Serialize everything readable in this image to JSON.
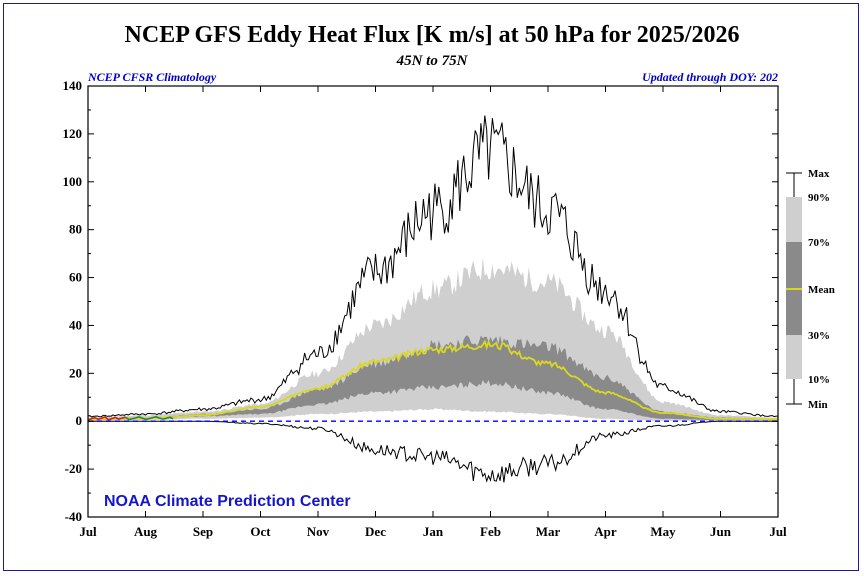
{
  "header": {
    "title": "NCEP GFS Eddy Heat Flux [K m/s] at 50 hPa for 2025/2026",
    "subtitle": "45N to 75N",
    "left_note": "NCEP CFSR Climatology",
    "right_note": "Updated through DOY: 202"
  },
  "watermark": "NOAA Climate Prediction Center",
  "chart_data": {
    "type": "area",
    "x": [
      "Jul",
      "Aug",
      "Sep",
      "Oct",
      "Nov",
      "Dec",
      "Jan",
      "Feb",
      "Mar",
      "Apr",
      "May",
      "Jun",
      "Jul"
    ],
    "xlabel": "",
    "ylabel": "",
    "ylim": [
      -40,
      140
    ],
    "yticks": [
      -40,
      -20,
      0,
      20,
      40,
      60,
      80,
      100,
      120,
      140
    ],
    "reference_line": {
      "y": 0,
      "style": "dashed",
      "color": "#0000ff"
    },
    "colors": {
      "band_10_90": "#cfcfcf",
      "band_30_70": "#8a8a8a",
      "mean": "#d8d820",
      "extremes": "#000000",
      "current": "#2b8a2b"
    },
    "series": [
      {
        "name": "Max",
        "values": [
          2,
          3,
          5,
          9,
          28,
          62,
          88,
          112,
          88,
          55,
          14,
          4,
          2
        ]
      },
      {
        "name": "90%",
        "values": [
          1.5,
          2.5,
          4,
          7,
          20,
          40,
          55,
          64,
          58,
          38,
          8,
          2.5,
          1.5
        ]
      },
      {
        "name": "70%",
        "values": [
          1,
          1.5,
          3,
          5,
          13,
          24,
          32,
          34,
          31,
          18,
          4,
          1.5,
          1
        ]
      },
      {
        "name": "Mean",
        "values": [
          0.8,
          1.2,
          2.5,
          6,
          14,
          25,
          30,
          32,
          24,
          12,
          3.5,
          1,
          0.8
        ]
      },
      {
        "name": "30%",
        "values": [
          0.5,
          1,
          2,
          3,
          7,
          12,
          14,
          16,
          12,
          5,
          1,
          0.5,
          0.5
        ]
      },
      {
        "name": "10%",
        "values": [
          0.3,
          0.5,
          1,
          1.5,
          3,
          4,
          5,
          4,
          3,
          1,
          0.2,
          0.2,
          0.3
        ]
      },
      {
        "name": "Min",
        "values": [
          0,
          0,
          0,
          -1,
          -3,
          -12,
          -15,
          -22,
          -18,
          -6,
          -2,
          0,
          0
        ]
      }
    ],
    "current_year": {
      "start_day": 0,
      "values": [
        0.5,
        1,
        1.5,
        0.8,
        1.2,
        1.8,
        0.6,
        1.1,
        1.6,
        0.9,
        1.3,
        1.7,
        0.7,
        1.0,
        1.4,
        1.8,
        1.2,
        0.8,
        1.1,
        1.5,
        1.9,
        1.3,
        0.9,
        1.2,
        1.6,
        1.0
      ]
    },
    "legend": {
      "position": "right",
      "labels": [
        "Max",
        "90%",
        "70%",
        "Mean",
        "30%",
        "10%",
        "Min"
      ]
    }
  }
}
